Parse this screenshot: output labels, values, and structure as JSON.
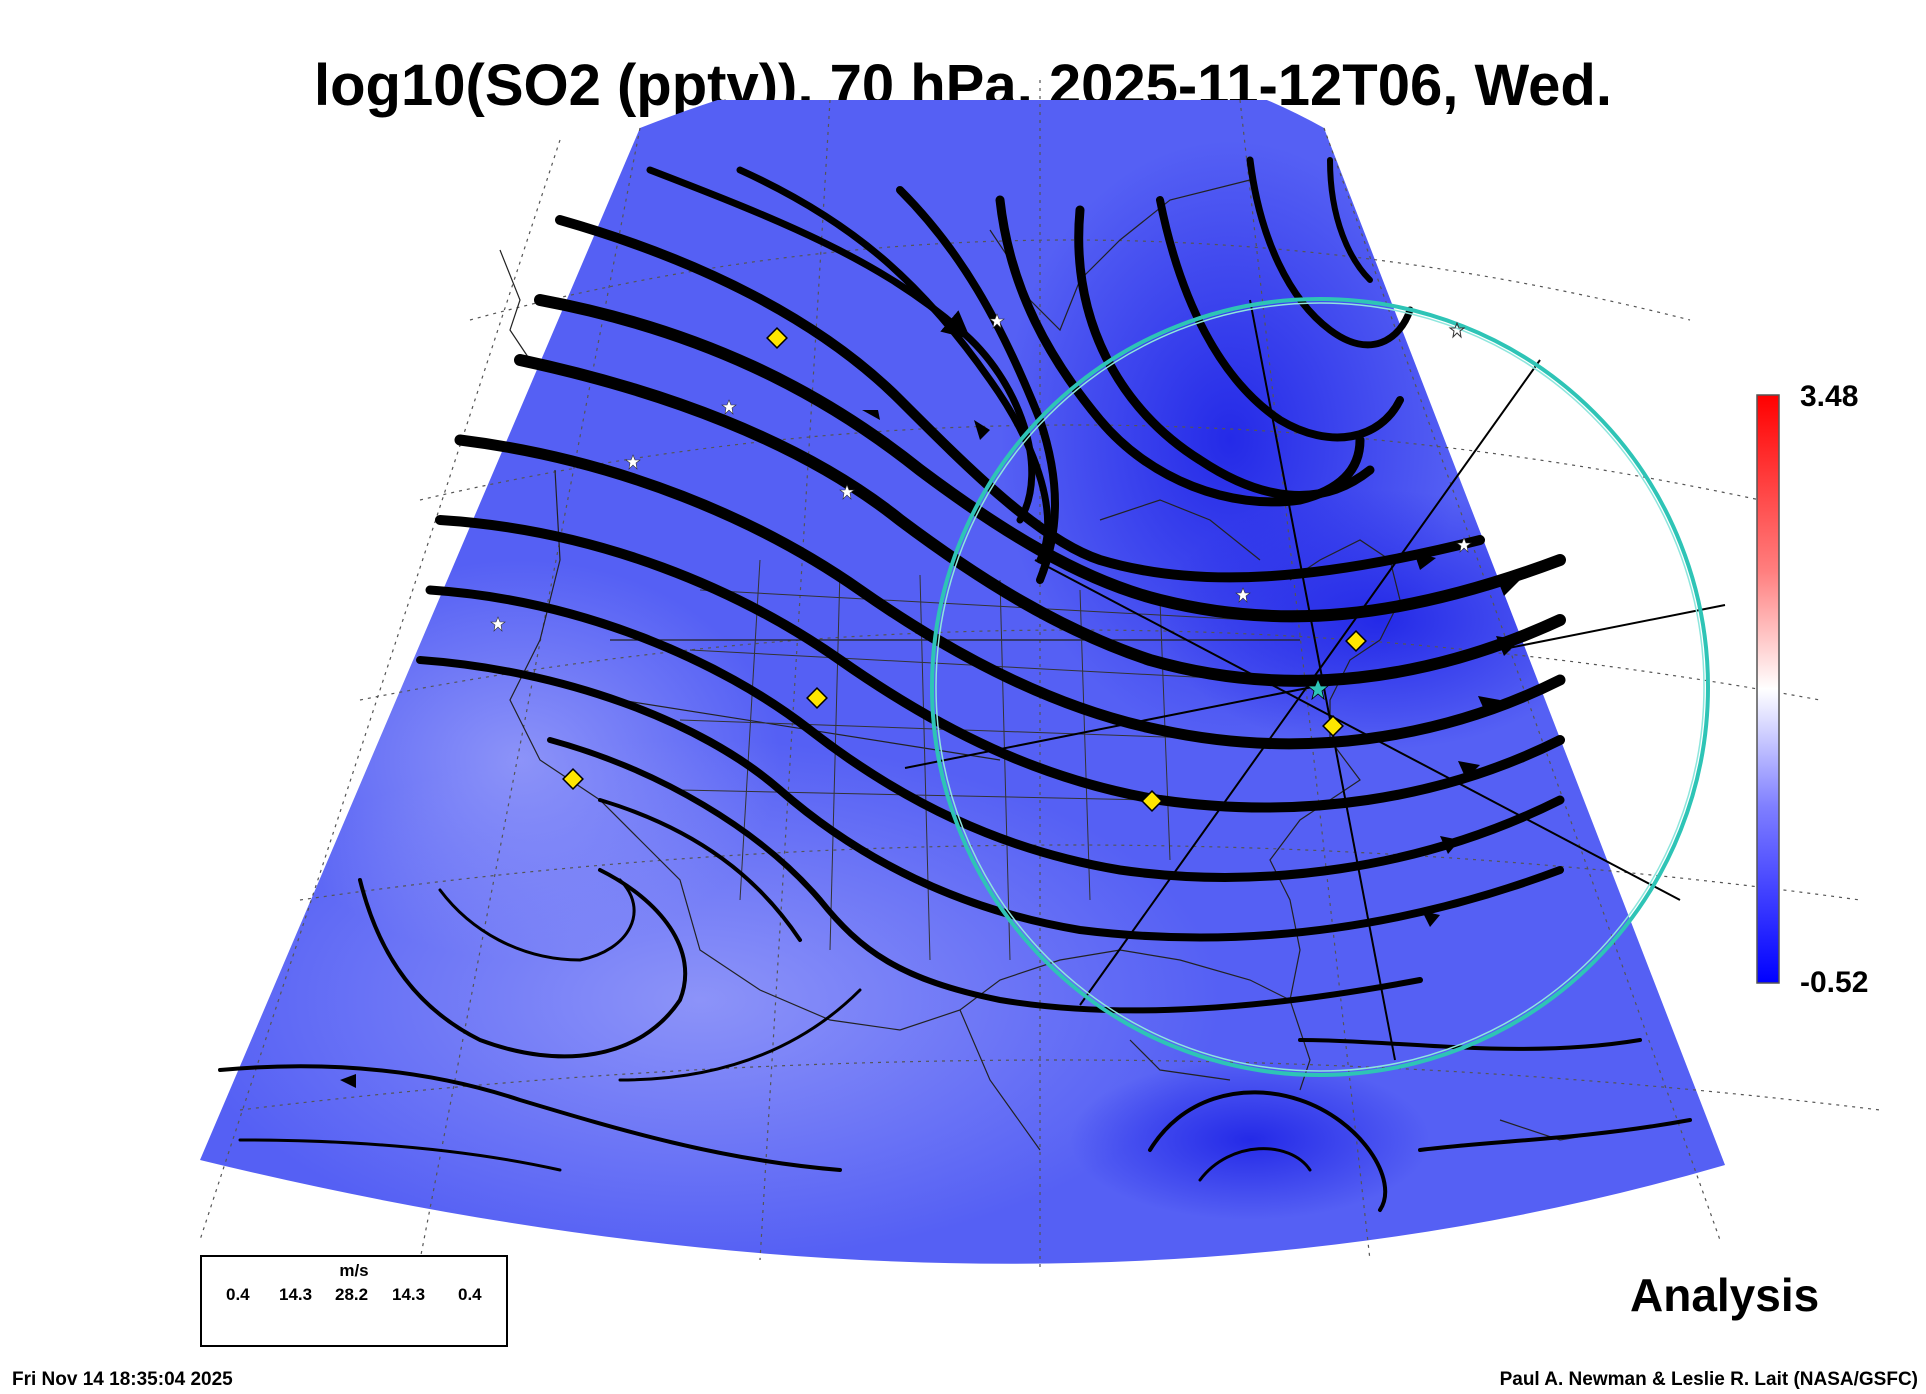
{
  "title": "log10(SO2 (pptv)), 70 hPa, 2025-11-12T06, Wed.",
  "colorbar": {
    "max_label": "3.48",
    "min_label": "-0.52",
    "colors": [
      "#0000ff",
      "#7f7fff",
      "#ffffff",
      "#ff7f7f",
      "#ff0000"
    ]
  },
  "legend": {
    "unit": "m/s",
    "ticks": [
      "0.4",
      "14.3",
      "28.2",
      "14.3",
      "0.4"
    ]
  },
  "field_colors": {
    "dark": "#2f3ae8",
    "mid": "#5560f4",
    "light": "#8d93f8"
  },
  "circle_color": "#2ec4b6",
  "marker_color": "#ffe600",
  "analysis_label": "Analysis",
  "timestamp": "Fri Nov 14 18:35:04 2025",
  "credit": "Paul A. Newman & Leslie R. Lait (NASA/GSFC)"
}
